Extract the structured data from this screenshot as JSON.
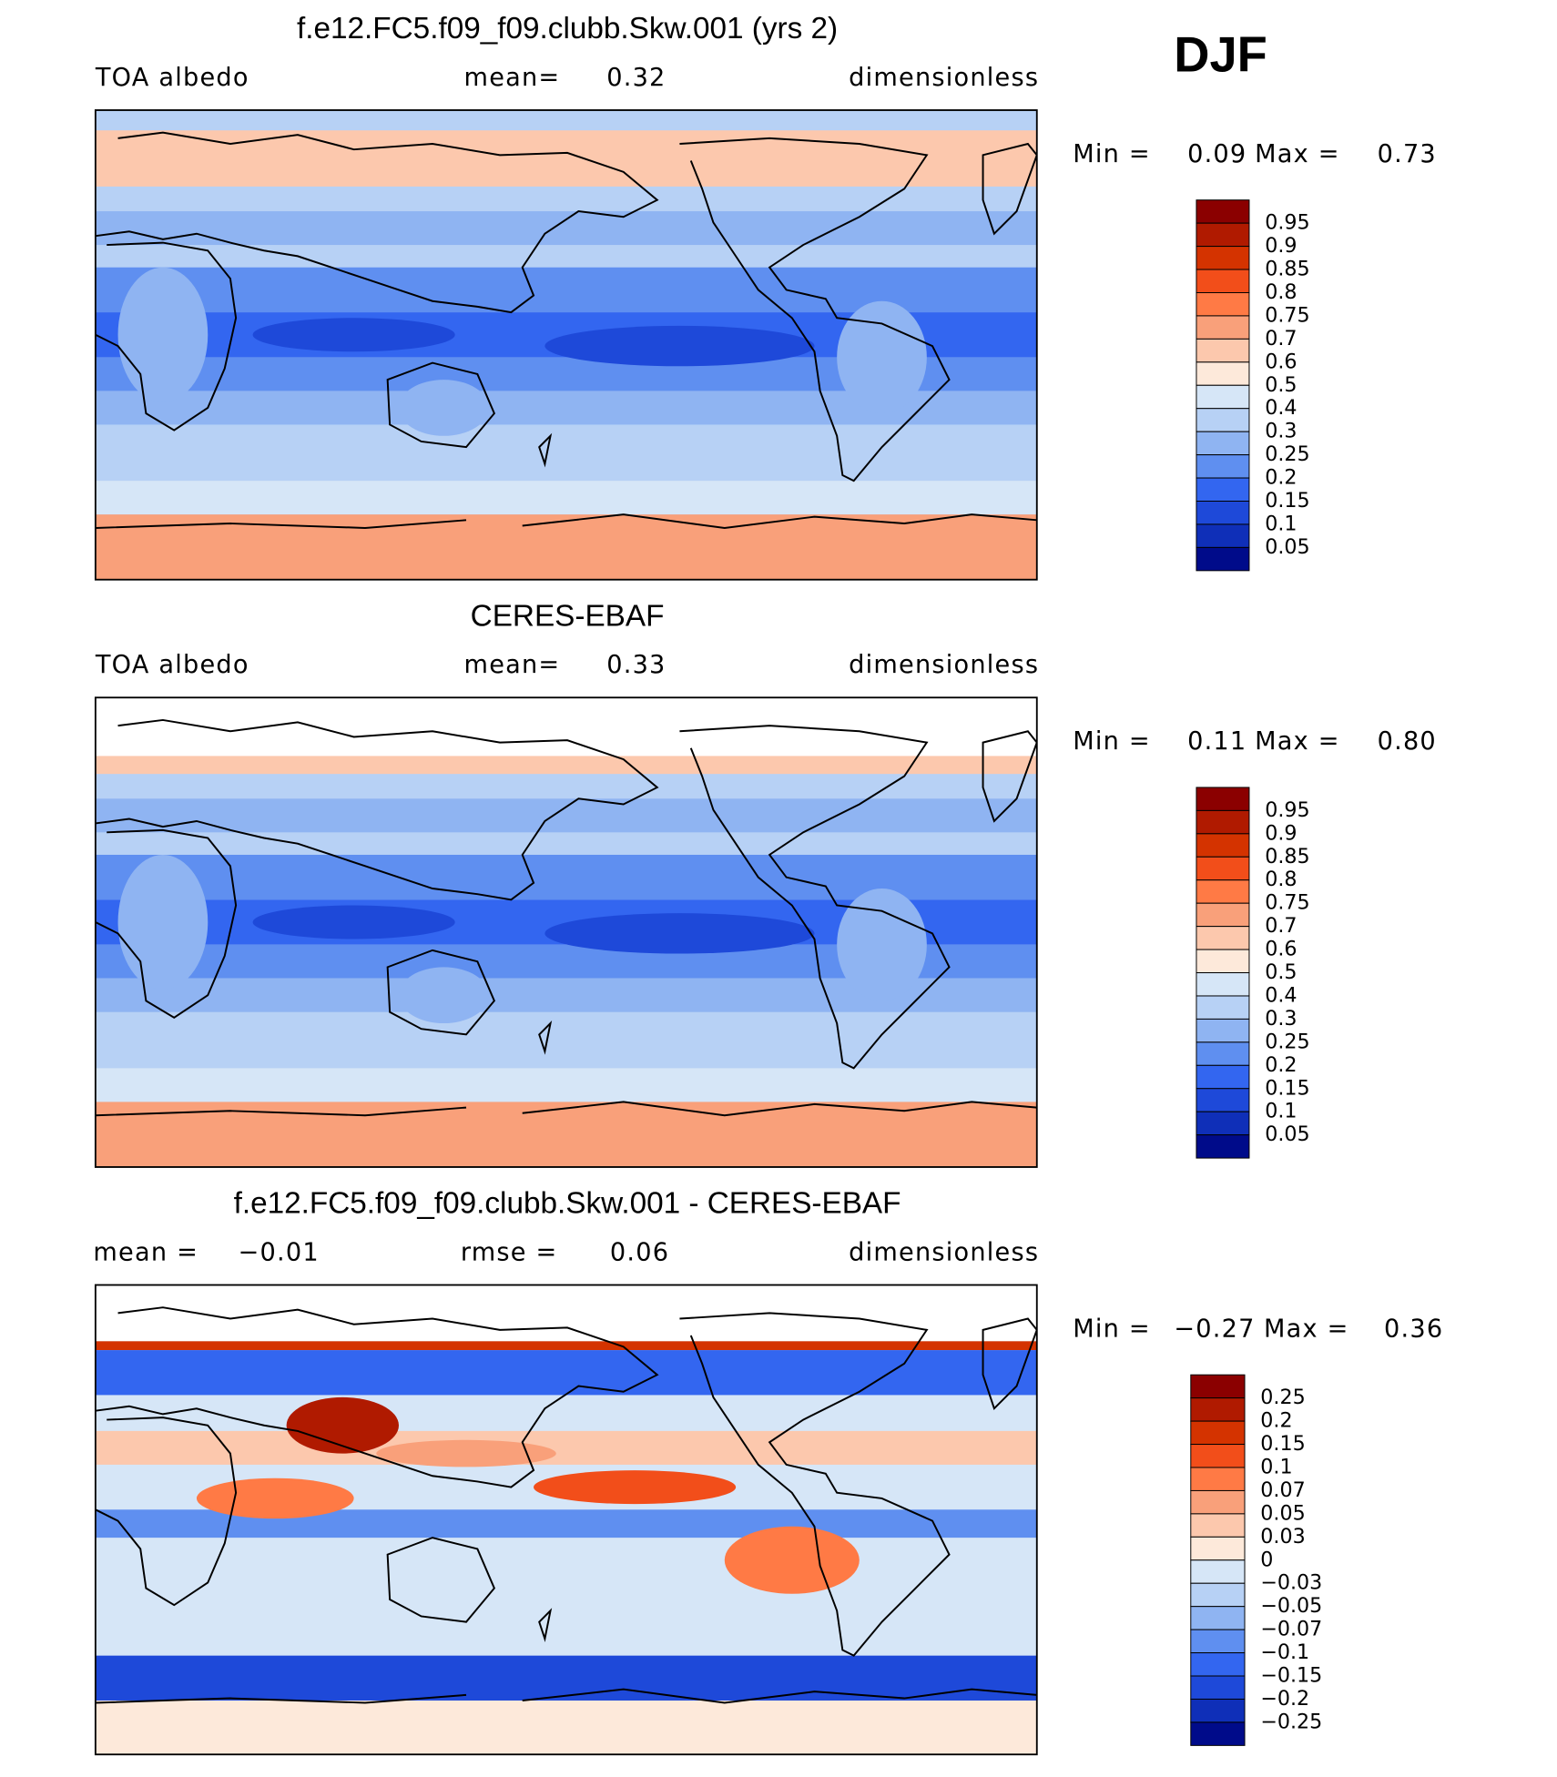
{
  "season": "DJF",
  "panels": [
    {
      "title": "f.e12.FC5.f09_f09.clubb.Skw.001 (yrs 2)",
      "variable": "TOA  albedo",
      "units": "dimensionless",
      "stats": [
        {
          "label": "mean=",
          "value": "0.32"
        }
      ],
      "min_label": "Min  =",
      "min": "0.09",
      "max_label": "Max  =",
      "max": "0.73",
      "colorbar": {
        "labels": [
          "0.95",
          "0.9",
          "0.85",
          "0.8",
          "0.75",
          "0.7",
          "0.6",
          "0.5",
          "0.4",
          "0.3",
          "0.25",
          "0.2",
          "0.15",
          "0.1",
          "0.05"
        ],
        "colors": [
          "#8b0000",
          "#b01a00",
          "#d43300",
          "#f24e1a",
          "#ff7a45",
          "#f9a07a",
          "#fcc8ad",
          "#fde9da",
          "#d6e6f7",
          "#b7d1f5",
          "#8fb4f2",
          "#5f8ff0",
          "#3366f0",
          "#1e49d9",
          "#0f2fb8",
          "#000b8a"
        ]
      }
    },
    {
      "title": "CERES-EBAF",
      "variable": "TOA  albedo",
      "units": "dimensionless",
      "stats": [
        {
          "label": "mean=",
          "value": "0.33"
        }
      ],
      "min_label": "Min  =",
      "min": "0.11",
      "max_label": "Max  =",
      "max": "0.80",
      "colorbar": {
        "labels": [
          "0.95",
          "0.9",
          "0.85",
          "0.8",
          "0.75",
          "0.7",
          "0.6",
          "0.5",
          "0.4",
          "0.3",
          "0.25",
          "0.2",
          "0.15",
          "0.1",
          "0.05"
        ],
        "colors": [
          "#8b0000",
          "#b01a00",
          "#d43300",
          "#f24e1a",
          "#ff7a45",
          "#f9a07a",
          "#fcc8ad",
          "#fde9da",
          "#d6e6f7",
          "#b7d1f5",
          "#8fb4f2",
          "#5f8ff0",
          "#3366f0",
          "#1e49d9",
          "#0f2fb8",
          "#000b8a"
        ]
      }
    },
    {
      "title": "f.e12.FC5.f09_f09.clubb.Skw.001 - CERES-EBAF",
      "units": "dimensionless",
      "stats": [
        {
          "label": "mean  =",
          "value": "−0.01"
        },
        {
          "label": "rmse  =",
          "value": "0.06"
        }
      ],
      "min_label": "Min  =",
      "min": "−0.27",
      "max_label": "Max  =",
      "max": "0.36",
      "colorbar": {
        "labels": [
          "0.25",
          "0.2",
          "0.15",
          "0.1",
          "0.07",
          "0.05",
          "0.03",
          "0",
          "−0.03",
          "−0.05",
          "−0.07",
          "−0.1",
          "−0.15",
          "−0.2",
          "−0.25"
        ],
        "colors": [
          "#8b0000",
          "#b01a00",
          "#d43300",
          "#f24e1a",
          "#ff7a45",
          "#f9a07a",
          "#fcc8ad",
          "#fde9da",
          "#d6e6f7",
          "#b7d1f5",
          "#8fb4f2",
          "#5f8ff0",
          "#3366f0",
          "#1e49d9",
          "#0f2fb8",
          "#000b8a"
        ]
      }
    }
  ]
}
